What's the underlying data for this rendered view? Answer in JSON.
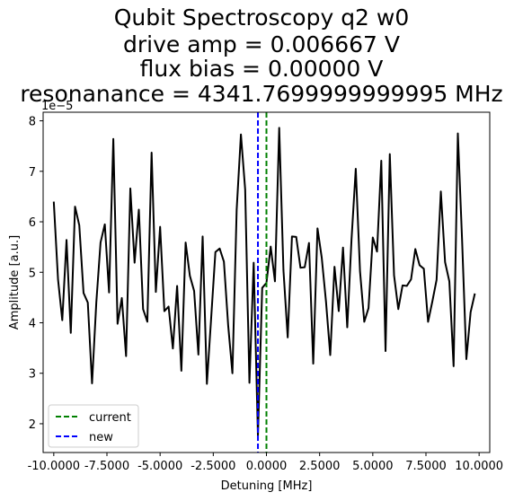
{
  "chart_data": {
    "type": "line",
    "title": [
      "Qubit Spectroscopy q2 w0",
      "drive amp = 0.006667 V",
      "flux bias = 0.00000 V",
      "resonanance = 4341.7699999999995 MHz"
    ],
    "xlabel": "Detuning [MHz]",
    "ylabel": "Amplitude [a.u.]",
    "y_offset_label": "1e−5",
    "xlim": [
      -10.5,
      10.5
    ],
    "ylim": [
      1.43,
      8.17
    ],
    "xticks": [
      -10,
      -7.5,
      -5,
      -2.5,
      0,
      2.5,
      5,
      7.5,
      10
    ],
    "xtick_labels": [
      "-10.0000",
      "-7.5000",
      "-5.0000",
      "-2.5000",
      "0.0000",
      "2.5000",
      "5.0000",
      "7.5000",
      "10.0000"
    ],
    "yticks": [
      2,
      3,
      4,
      5,
      6,
      7,
      8
    ],
    "ytick_labels": [
      "2",
      "3",
      "4",
      "5",
      "6",
      "7",
      "8"
    ],
    "grid": false,
    "legend_position": "lower-left",
    "series": [
      {
        "name": "",
        "color": "#000000",
        "x_start": -10,
        "x_step": 0.2,
        "values": [
          6.4,
          4.86,
          4.05,
          5.64,
          3.8,
          6.3,
          5.93,
          4.59,
          4.4,
          2.8,
          4.4,
          5.59,
          5.95,
          4.6,
          7.64,
          3.98,
          4.49,
          3.34,
          6.66,
          5.19,
          6.24,
          4.27,
          4.02,
          7.37,
          4.61,
          5.9,
          4.23,
          4.32,
          3.49,
          4.73,
          3.05,
          5.59,
          4.93,
          4.63,
          3.37,
          5.71,
          2.79,
          4.09,
          5.4,
          5.47,
          5.21,
          3.95,
          3.0,
          6.24,
          7.73,
          6.64,
          2.81,
          5.19,
          1.76,
          4.69,
          4.79,
          5.51,
          4.82,
          7.86,
          5.04,
          3.71,
          5.71,
          5.7,
          5.09,
          5.1,
          5.58,
          3.19,
          5.87,
          5.29,
          4.42,
          3.36,
          5.11,
          4.23,
          5.49,
          3.91,
          5.65,
          7.05,
          5.02,
          4.02,
          4.29,
          5.69,
          5.41,
          7.21,
          3.44,
          7.34,
          4.94,
          4.27,
          4.74,
          4.73,
          4.86,
          5.46,
          5.14,
          5.07,
          4.02,
          4.42,
          4.85,
          6.6,
          5.2,
          4.82,
          3.14,
          7.75,
          5.63,
          3.28,
          4.21,
          4.58
        ]
      }
    ],
    "vlines": [
      {
        "name": "current",
        "x": 0.0,
        "color": "#008000",
        "style": "dashed"
      },
      {
        "name": "new",
        "x": -0.4,
        "color": "#0000ff",
        "style": "dashed"
      }
    ]
  }
}
